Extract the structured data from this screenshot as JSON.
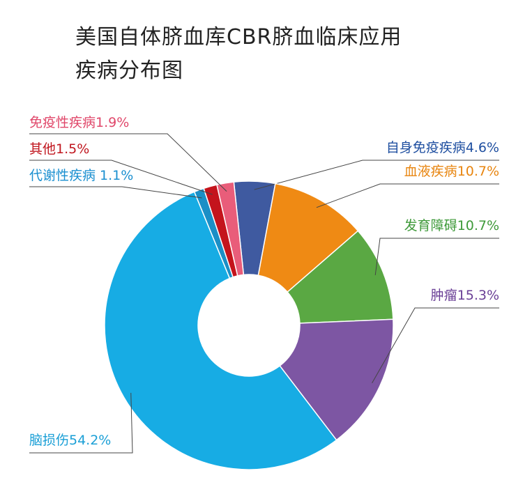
{
  "title_lines": [
    "美国自体脐血库CBR脐血临床应用",
    "疾病分布图"
  ],
  "chart_data": {
    "type": "pie",
    "variant": "donut",
    "title": "美国自体脐血库CBR脐血临床应用疾病分布图",
    "slices": [
      {
        "name": "自身免疫疾病",
        "value": 4.6,
        "label": "自身免疫疾病4.6%",
        "color": "#3f5aa0",
        "text_color": "#1f4fa0"
      },
      {
        "name": "血液疾病",
        "value": 10.7,
        "label": "血液疾病10.7%",
        "color": "#ef8a14",
        "text_color": "#e8850f"
      },
      {
        "name": "发育障碍",
        "value": 10.7,
        "label": "发育障碍10.7%",
        "color": "#5aa843",
        "text_color": "#3f9a3a"
      },
      {
        "name": "肿瘤",
        "value": 15.3,
        "label": "肿瘤15.3%",
        "color": "#7d56a3",
        "text_color": "#6a3f96"
      },
      {
        "name": "脑损伤",
        "value": 54.2,
        "label": "脑损伤54.2%",
        "color": "#17ace4",
        "text_color": "#1a9fd6"
      },
      {
        "name": "代谢性疾病",
        "value": 1.1,
        "label": "代谢性疾病 1.1%",
        "color": "#1b8fc6",
        "text_color": "#1a8fd0"
      },
      {
        "name": "其他",
        "value": 1.5,
        "label": "其他1.5%",
        "color": "#c4141c",
        "text_color": "#c0161e"
      },
      {
        "name": "免疫性疾病",
        "value": 1.9,
        "label": "免疫性疾病1.9%",
        "color": "#e95d7a",
        "text_color": "#e0476a"
      }
    ],
    "legend": "none"
  }
}
